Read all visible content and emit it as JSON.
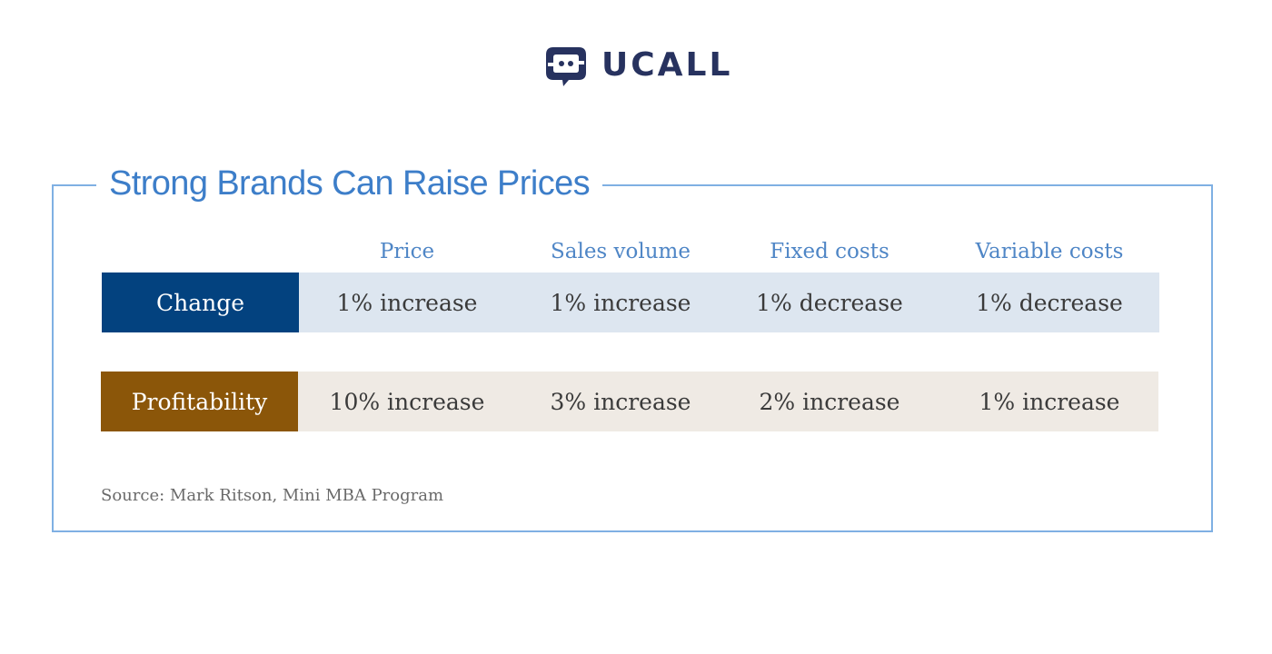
{
  "logo": {
    "text": "UCALL",
    "color": "#27325f"
  },
  "chart_data": {
    "type": "table",
    "title": "Strong Brands Can Raise Prices",
    "columns": [
      "Price",
      "Sales volume",
      "Fixed costs",
      "Variable costs"
    ],
    "rows": [
      {
        "label": "Change",
        "label_color": "#03427f",
        "band_color": "#dde6f0",
        "values": [
          "1% increase",
          "1% increase",
          "1% decrease",
          "1% decrease"
        ]
      },
      {
        "label": "Profitability",
        "label_color": "#8b5609",
        "band_color": "#efeae4",
        "values": [
          "10% increase",
          "3% increase",
          "2% increase",
          "1% increase"
        ]
      }
    ],
    "source": "Source: Mark Ritson, Mini MBA Program"
  },
  "colors": {
    "frame": "#7fb0e3",
    "title": "#3d7ec9",
    "column_header": "#4f86c6"
  }
}
